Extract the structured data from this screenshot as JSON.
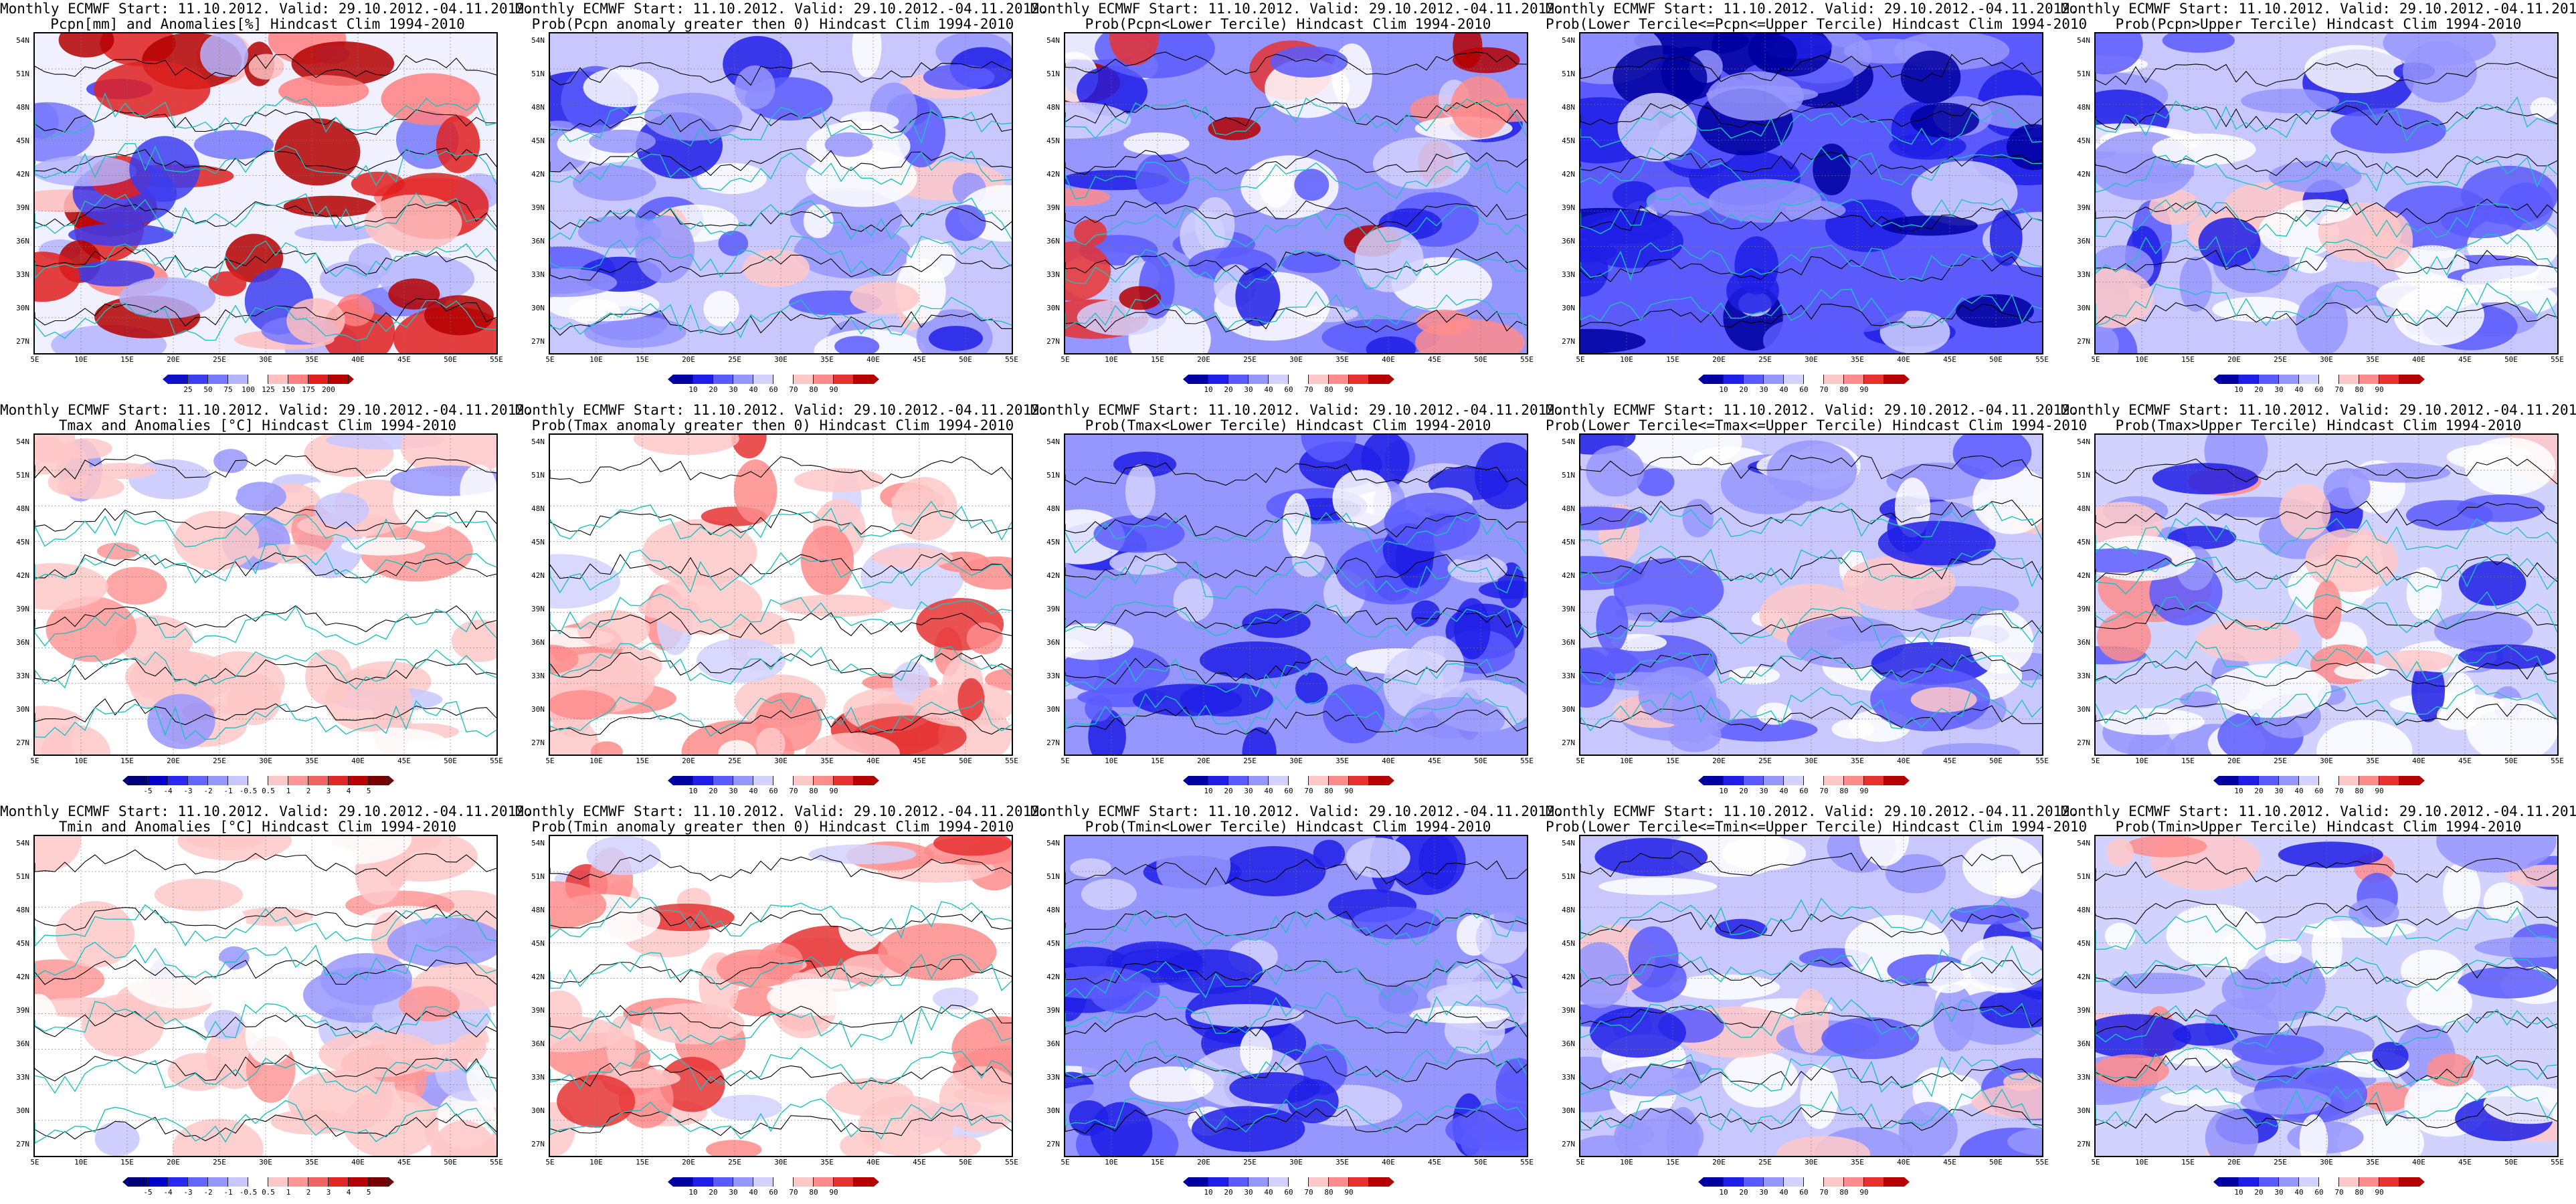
{
  "title_line1": "Monthly ECMWF Start: 11.10.2012. Valid: 29.10.2012.-04.11.2012.",
  "lat_ticks": [
    "54N",
    "51N",
    "48N",
    "45N",
    "42N",
    "39N",
    "36N",
    "33N",
    "30N",
    "27N"
  ],
  "lon_ticks": [
    "5E",
    "10E",
    "15E",
    "20E",
    "25E",
    "30E",
    "35E",
    "40E",
    "45E",
    "50E",
    "55E"
  ],
  "scales": {
    "pcpn": {
      "labels": [
        "25",
        "50",
        "75",
        "100",
        "125",
        "150",
        "175",
        "200"
      ],
      "colors": [
        "#1010c8",
        "#3c3cf0",
        "#7878ff",
        "#b4b4ff",
        "#ffffff",
        "#ffc0c0",
        "#ff8080",
        "#e02020",
        "#b40000"
      ]
    },
    "anom": {
      "labels": [
        "-5",
        "-4",
        "-3",
        "-2",
        "-1",
        "-0.5",
        "0.5",
        "1",
        "2",
        "3",
        "4",
        "5"
      ],
      "colors": [
        "#000078",
        "#0000c8",
        "#2828f0",
        "#6464ff",
        "#9696ff",
        "#c8c8ff",
        "#ffffff",
        "#ffc8c8",
        "#ff9696",
        "#f06464",
        "#e02828",
        "#b40000",
        "#780000"
      ]
    },
    "prob": {
      "labels": [
        "10",
        "20",
        "30",
        "40",
        "60",
        "70",
        "80",
        "90"
      ],
      "colors": [
        "#0000a0",
        "#1e1ee6",
        "#5a5aff",
        "#9696ff",
        "#d2d2ff",
        "#ffffff",
        "#ffc8c8",
        "#ff8c8c",
        "#e63232",
        "#b40000"
      ]
    }
  },
  "panels": [
    {
      "title2": "Pcpn[mm] and Anomalies[%] Hindcast Clim 1994-2010",
      "scale": "pcpn",
      "map": "pcpn_anom"
    },
    {
      "title2": "Prob(Pcpn anomaly greater then 0) Hindcast Clim 1994-2010",
      "scale": "prob",
      "map": "blue_mix"
    },
    {
      "title2": "Prob(Pcpn<Lower Tercile) Hindcast Clim 1994-2010",
      "scale": "prob",
      "map": "blue_south_red"
    },
    {
      "title2": "Prob(Lower Tercile<=Pcpn<=Upper Tercile) Hindcast Clim 1994-2010",
      "scale": "prob",
      "map": "dark_blue"
    },
    {
      "title2": "Prob(Pcpn>Upper Tercile) Hindcast Clim 1994-2010",
      "scale": "prob",
      "map": "blue_mix"
    },
    {
      "title2": "Tmax and Anomalies [°C] Hindcast Clim 1994-2010",
      "scale": "anom",
      "map": "light_red"
    },
    {
      "title2": "Prob(Tmax anomaly greater then 0) Hindcast Clim 1994-2010",
      "scale": "prob",
      "map": "red_mix"
    },
    {
      "title2": "Prob(Tmax<Lower Tercile) Hindcast Clim 1994-2010",
      "scale": "prob",
      "map": "blue_strong"
    },
    {
      "title2": "Prob(Lower Tercile<=Tmax<=Upper Tercile) Hindcast Clim 1994-2010",
      "scale": "prob",
      "map": "blue_mix"
    },
    {
      "title2": "Prob(Tmax>Upper Tercile) Hindcast Clim 1994-2010",
      "scale": "prob",
      "map": "blue_light_red"
    },
    {
      "title2": "Tmin and Anomalies [°C] Hindcast Clim 1994-2010",
      "scale": "anom",
      "map": "light_red"
    },
    {
      "title2": "Prob(Tmin anomaly greater then 0) Hindcast Clim 1994-2010",
      "scale": "prob",
      "map": "red_mix"
    },
    {
      "title2": "Prob(Tmin<Lower Tercile) Hindcast Clim 1994-2010",
      "scale": "prob",
      "map": "blue_strong"
    },
    {
      "title2": "Prob(Lower Tercile<=Tmin<=Upper Tercile) Hindcast Clim 1994-2010",
      "scale": "prob",
      "map": "blue_mix"
    },
    {
      "title2": "Prob(Tmin>Upper Tercile) Hindcast Clim 1994-2010",
      "scale": "prob",
      "map": "blue_light_red"
    }
  ],
  "map_styles": {
    "pcpn_anom": {
      "base": "#f0f0ff",
      "blobs": [
        "#b4b4ff",
        "#7878ff",
        "#e02020",
        "#b40000",
        "#ff8080",
        "#b40000",
        "#ffc0c0",
        "#e02020",
        "#b4b4ff",
        "#3c3cf0"
      ]
    },
    "blue_mix": {
      "base": "#c8c8ff",
      "blobs": [
        "#9696ff",
        "#5a5aff",
        "#ffffff",
        "#ffffff",
        "#9696ff",
        "#ffffff",
        "#1e1ee6",
        "#5a5aff",
        "#ffc8c8",
        "#9696ff"
      ]
    },
    "blue_south_red": {
      "base": "#9696ff",
      "blobs": [
        "#5a5aff",
        "#ffffff",
        "#d2d2ff",
        "#1e1ee6",
        "#ffffff",
        "#5a5aff",
        "#e63232",
        "#ff8c8c",
        "#b40000",
        "#d2d2ff"
      ]
    },
    "dark_blue": {
      "base": "#5a5aff",
      "blobs": [
        "#1e1ee6",
        "#9696ff",
        "#1e1ee6",
        "#d2d2ff",
        "#0000a0",
        "#1e1ee6",
        "#0000a0",
        "#0000a0",
        "#5a5aff",
        "#9696ff"
      ]
    },
    "light_red": {
      "base": "#ffffff",
      "blobs": [
        "#ffc8c8",
        "#ffffff",
        "#ffc8c8",
        "#c8c8ff",
        "#ff9696",
        "#ffc8c8",
        "#ffffff",
        "#9696ff",
        "#ffc8c8",
        "#ffc8c8"
      ]
    },
    "red_mix": {
      "base": "#ffffff",
      "blobs": [
        "#ffc8c8",
        "#ff8c8c",
        "#ff8c8c",
        "#d2d2ff",
        "#ffc8c8",
        "#ff8c8c",
        "#ffffff",
        "#ffc8c8",
        "#e63232",
        "#ffc8c8"
      ]
    },
    "blue_strong": {
      "base": "#9696ff",
      "blobs": [
        "#5a5aff",
        "#1e1ee6",
        "#1e1ee6",
        "#d2d2ff",
        "#1e1ee6",
        "#5a5aff",
        "#ffffff",
        "#d2d2ff",
        "#1e1ee6",
        "#9696ff"
      ]
    },
    "blue_light_red": {
      "base": "#d2d2ff",
      "blobs": [
        "#9696ff",
        "#ffffff",
        "#ffffff",
        "#9696ff",
        "#ffc8c8",
        "#ff8c8c",
        "#5a5aff",
        "#1e1ee6",
        "#9696ff",
        "#ffffff"
      ]
    }
  }
}
